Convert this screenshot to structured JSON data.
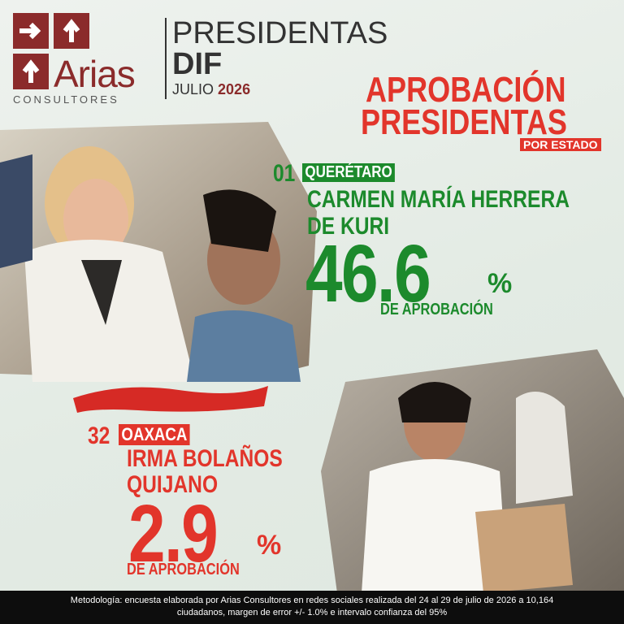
{
  "header": {
    "logo": {
      "name": "Arias",
      "subtitle": "CONSULTORES"
    },
    "title": "PRESIDENTAS",
    "subtitle": "DIF",
    "month": "JULIO",
    "year": "2026"
  },
  "heading": {
    "line1": "APROBACIÓN",
    "line2": "PRESIDENTAS",
    "tag": "POR ESTADO"
  },
  "entries": [
    {
      "rank": "01",
      "state": "QUERÉTARO",
      "name_lines": [
        "CARMEN MARÍA HERRERA",
        "DE KURI"
      ],
      "value": 46.6,
      "unit": "%",
      "caption": "DE APROBACIÓN"
    },
    {
      "rank": "32",
      "state": "OAXACA",
      "name_lines": [
        "IRMA BOLAÑOS",
        "QUIJANO"
      ],
      "value": 2.9,
      "unit": "%",
      "caption": "DE APROBACIÓN"
    }
  ],
  "footer": {
    "lines": [
      "Metodología: encuesta elaborada por Arias Consultores en redes sociales realizada del 24 al 29 de julio de 2026 a 10,164",
      "ciudadanos, margen de error +/- 1.0% e intervalo confianza del 95%"
    ]
  }
}
